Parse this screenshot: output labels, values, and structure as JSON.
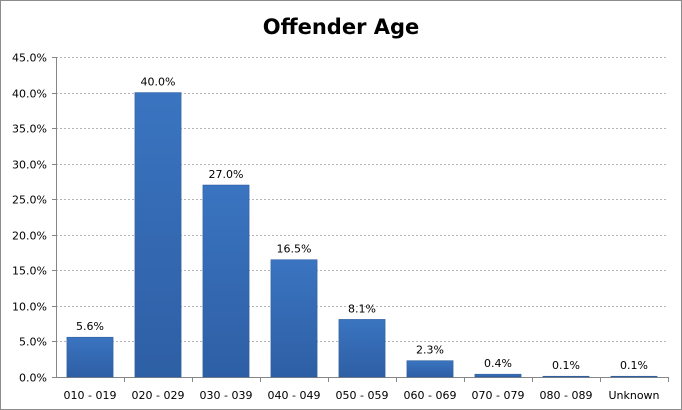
{
  "chart_data": {
    "type": "bar",
    "title": "Offender Age",
    "categories": [
      "010 - 019",
      "020 - 029",
      "030 - 039",
      "040 - 049",
      "050 - 059",
      "060 - 069",
      "070 - 079",
      "080 - 089",
      "Unknown"
    ],
    "values": [
      5.6,
      40.0,
      27.0,
      16.5,
      8.1,
      2.3,
      0.4,
      0.1,
      0.1
    ],
    "data_labels": [
      "5.6%",
      "40.0%",
      "27.0%",
      "16.5%",
      "8.1%",
      "2.3%",
      "0.4%",
      "0.1%",
      "0.1%"
    ],
    "yticks": [
      "0.0%",
      "5.0%",
      "10.0%",
      "15.0%",
      "20.0%",
      "25.0%",
      "30.0%",
      "35.0%",
      "40.0%",
      "45.0%"
    ],
    "ylim": [
      0,
      45
    ],
    "xlabel": "",
    "ylabel": "",
    "grid": true,
    "legend": "none",
    "bar_color": "#3a74c0",
    "bar_color_dark": "#2e5fa5",
    "grid_color": "#b5b5b5"
  }
}
